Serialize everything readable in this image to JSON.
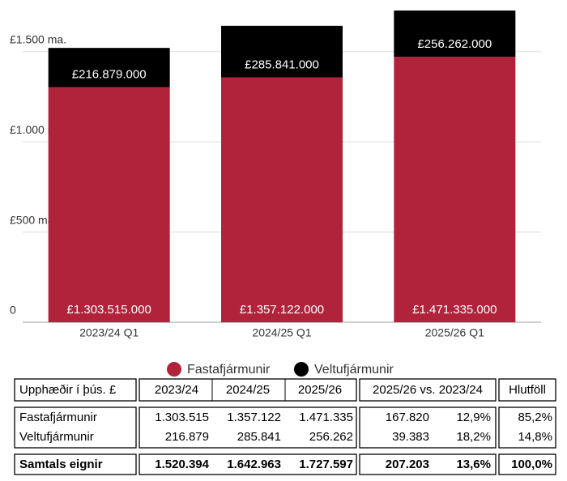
{
  "chart_data": {
    "type": "stacked_bar",
    "categories": [
      "2023/24 Q1",
      "2024/25 Q1",
      "2025/26 Q1"
    ],
    "series": [
      {
        "name": "Fastafjármunir",
        "color": "#b0233b",
        "values": [
          1303515000,
          1357122000,
          1471335000
        ],
        "value_labels": [
          "£1.303.515.000",
          "£1.357.122.000",
          "£1.471.335.000"
        ]
      },
      {
        "name": "Veltufjármunir",
        "color": "#000000",
        "values": [
          216879000,
          285841000,
          256262000
        ],
        "value_labels": [
          "£216.879.000",
          "£285.841.000",
          "£256.262.000"
        ]
      }
    ],
    "ylim": [
      0,
      1750000000
    ],
    "yticks": [
      0,
      {
        "value": 500000000,
        "label": "£500 ma."
      },
      {
        "value": 1000000000,
        "label": "£1.000 ma."
      },
      {
        "value": 1500000000,
        "label": "£1.500 ma."
      }
    ],
    "grid": true,
    "legend": "bottom"
  },
  "table": {
    "header": [
      "Upphæðir í þús. £",
      "2023/24",
      "2024/25",
      "2025/26",
      "2025/26 vs. 2023/24",
      "Hlutföll"
    ],
    "rows": [
      [
        "Fastafjármunir",
        "1.303.515",
        "1.357.122",
        "1.471.335",
        "167.820",
        "12,9%",
        "85,2%"
      ],
      [
        "Veltufjármunir",
        "216.879",
        "285.841",
        "256.262",
        "39.383",
        "18,2%",
        "14,8%"
      ]
    ],
    "total_row": [
      "Samtals eignir",
      "1.520.394",
      "1.642.963",
      "1.727.597",
      "207.203",
      "13,6%",
      "100,0%"
    ]
  }
}
